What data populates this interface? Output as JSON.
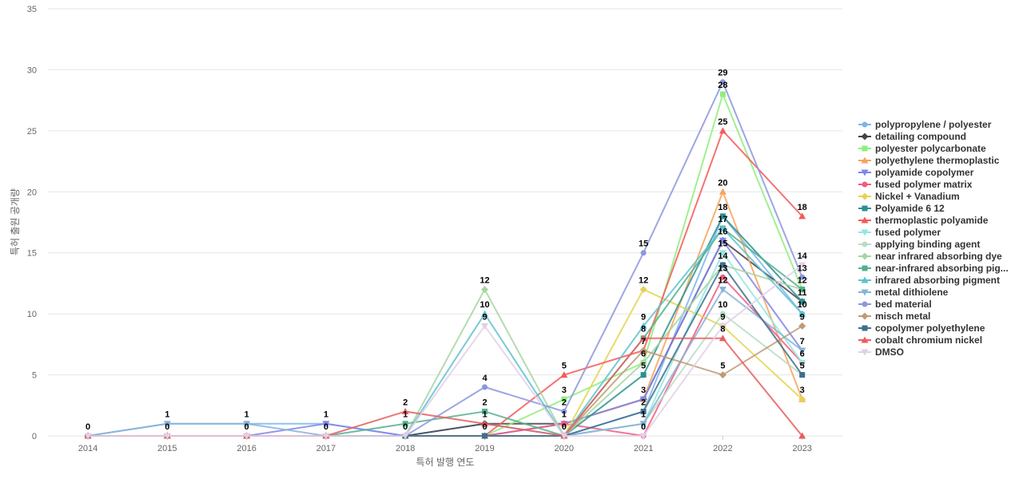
{
  "chart_data": {
    "type": "line",
    "title": "",
    "xlabel": "특허 발행 연도",
    "ylabel": "특허 출원 공개량",
    "ylim": [
      0,
      35
    ],
    "yticks": [
      0,
      5,
      10,
      15,
      20,
      25,
      30,
      35
    ],
    "grid": true,
    "legend_position": "right",
    "categories": [
      "2014",
      "2015",
      "2016",
      "2017",
      "2018",
      "2019",
      "2020",
      "2021",
      "2022",
      "2023"
    ],
    "series": [
      {
        "name": "polypropylene / polyester",
        "color": "#7cb5ec",
        "marker": "circle",
        "values": [
          0,
          1,
          1,
          1,
          0,
          1,
          0,
          2,
          18,
          10
        ]
      },
      {
        "name": "detailing compound",
        "color": "#434348",
        "marker": "diamond",
        "values": [
          0,
          0,
          0,
          0,
          0,
          1,
          1,
          3,
          16,
          11
        ]
      },
      {
        "name": "polyester polycarbonate",
        "color": "#90ed7d",
        "marker": "square",
        "values": [
          0,
          0,
          0,
          0,
          0,
          0,
          3,
          6,
          28,
          12
        ]
      },
      {
        "name": "polyethylene thermoplastic",
        "color": "#f7a35c",
        "marker": "triangle",
        "values": [
          0,
          0,
          0,
          0,
          0,
          0,
          1,
          3,
          20,
          3
        ]
      },
      {
        "name": "polyamide copolymer",
        "color": "#8085e9",
        "marker": "triangle-down",
        "values": [
          0,
          0,
          0,
          1,
          0,
          0,
          1,
          3,
          16,
          7
        ]
      },
      {
        "name": "fused polymer matrix",
        "color": "#f15c80",
        "marker": "circle",
        "values": [
          0,
          0,
          0,
          0,
          0,
          0,
          1,
          0,
          13,
          6
        ]
      },
      {
        "name": "Nickel + Vanadium",
        "color": "#e4d354",
        "marker": "diamond",
        "values": [
          0,
          0,
          0,
          0,
          0,
          0,
          0,
          12,
          9,
          3
        ]
      },
      {
        "name": "Polyamide 6 12",
        "color": "#2b908f",
        "marker": "square",
        "values": [
          0,
          0,
          0,
          0,
          0,
          0,
          0,
          5,
          18,
          11
        ]
      },
      {
        "name": "thermoplastic polyamide",
        "color": "#f45b5b",
        "marker": "triangle",
        "values": [
          0,
          0,
          0,
          0,
          0,
          0,
          5,
          7,
          25,
          18
        ]
      },
      {
        "name": "fused polymer",
        "color": "#91e8e1",
        "marker": "triangle-down",
        "values": [
          0,
          0,
          0,
          0,
          0,
          0,
          0,
          1,
          15,
          6
        ]
      },
      {
        "name": "applying binding agent",
        "color": "#b8dcc4",
        "marker": "circle",
        "values": [
          0,
          0,
          0,
          0,
          0,
          0,
          0,
          1,
          10,
          5
        ]
      },
      {
        "name": "near infrared absorbing dye",
        "color": "#a8d5a2",
        "marker": "diamond",
        "values": [
          0,
          0,
          0,
          0,
          0,
          12,
          0,
          6,
          14,
          12
        ]
      },
      {
        "name": "near-infrared absorbing pig...",
        "color": "#52b08e",
        "marker": "square",
        "values": [
          0,
          0,
          0,
          0,
          1,
          2,
          0,
          8,
          17,
          12
        ]
      },
      {
        "name": "infrared absorbing pigment",
        "color": "#5ec2cf",
        "marker": "triangle",
        "values": [
          0,
          0,
          0,
          0,
          0,
          10,
          0,
          9,
          17,
          10
        ]
      },
      {
        "name": "metal dithiolene",
        "color": "#86b3d9",
        "marker": "triangle-down",
        "values": [
          0,
          1,
          1,
          0,
          0,
          0,
          0,
          1,
          12,
          7
        ]
      },
      {
        "name": "bed material",
        "color": "#8c96dc",
        "marker": "circle",
        "values": [
          0,
          0,
          0,
          0,
          0,
          4,
          2,
          15,
          29,
          13
        ]
      },
      {
        "name": "misch metal",
        "color": "#c09a76",
        "marker": "diamond",
        "values": [
          0,
          0,
          0,
          0,
          0,
          0,
          0,
          7,
          5,
          9
        ]
      },
      {
        "name": "copolymer polyethylene",
        "color": "#3f6e8c",
        "marker": "square",
        "values": [
          0,
          0,
          0,
          0,
          0,
          0,
          0,
          2,
          14,
          5
        ]
      },
      {
        "name": "cobalt chromium nickel",
        "color": "#e85e5e",
        "marker": "triangle",
        "values": [
          0,
          0,
          0,
          0,
          2,
          1,
          0,
          8,
          8,
          0
        ]
      },
      {
        "name": "DMSO",
        "color": "#e3cfe6",
        "marker": "triangle-down",
        "values": [
          0,
          0,
          0,
          0,
          0,
          9,
          0,
          0,
          9,
          14
        ]
      }
    ],
    "point_labels": [
      {
        "x": "2014",
        "y": 0,
        "text": "0"
      },
      {
        "x": "2015",
        "y": 1,
        "text": "1"
      },
      {
        "x": "2015",
        "y": 0,
        "text": "0"
      },
      {
        "x": "2016",
        "y": 1,
        "text": "1"
      },
      {
        "x": "2016",
        "y": 0,
        "text": "0"
      },
      {
        "x": "2017",
        "y": 1,
        "text": "1"
      },
      {
        "x": "2017",
        "y": 0,
        "text": "0"
      },
      {
        "x": "2018",
        "y": 2,
        "text": "2"
      },
      {
        "x": "2018",
        "y": 1,
        "text": "1"
      },
      {
        "x": "2018",
        "y": 0,
        "text": "0"
      },
      {
        "x": "2019",
        "y": 12,
        "text": "12"
      },
      {
        "x": "2019",
        "y": 10,
        "text": "10"
      },
      {
        "x": "2019",
        "y": 9,
        "text": "9"
      },
      {
        "x": "2019",
        "y": 4,
        "text": "4"
      },
      {
        "x": "2019",
        "y": 2,
        "text": "2"
      },
      {
        "x": "2019",
        "y": 1,
        "text": "1"
      },
      {
        "x": "2019",
        "y": 0,
        "text": "0"
      },
      {
        "x": "2020",
        "y": 5,
        "text": "5"
      },
      {
        "x": "2020",
        "y": 3,
        "text": "3"
      },
      {
        "x": "2020",
        "y": 2,
        "text": "2"
      },
      {
        "x": "2020",
        "y": 1,
        "text": "1"
      },
      {
        "x": "2020",
        "y": 0,
        "text": "0"
      },
      {
        "x": "2021",
        "y": 15,
        "text": "15"
      },
      {
        "x": "2021",
        "y": 12,
        "text": "12"
      },
      {
        "x": "2021",
        "y": 9,
        "text": "9"
      },
      {
        "x": "2021",
        "y": 8,
        "text": "8"
      },
      {
        "x": "2021",
        "y": 7,
        "text": "7"
      },
      {
        "x": "2021",
        "y": 6,
        "text": "6"
      },
      {
        "x": "2021",
        "y": 5,
        "text": "5"
      },
      {
        "x": "2021",
        "y": 3,
        "text": "3"
      },
      {
        "x": "2021",
        "y": 2,
        "text": "2"
      },
      {
        "x": "2021",
        "y": 1,
        "text": "1"
      },
      {
        "x": "2021",
        "y": 0,
        "text": "0"
      },
      {
        "x": "2022",
        "y": 29,
        "text": "29"
      },
      {
        "x": "2022",
        "y": 28,
        "text": "28"
      },
      {
        "x": "2022",
        "y": 25,
        "text": "25"
      },
      {
        "x": "2022",
        "y": 20,
        "text": "20"
      },
      {
        "x": "2022",
        "y": 18,
        "text": "18"
      },
      {
        "x": "2022",
        "y": 17,
        "text": "17"
      },
      {
        "x": "2022",
        "y": 16,
        "text": "16"
      },
      {
        "x": "2022",
        "y": 15,
        "text": "15"
      },
      {
        "x": "2022",
        "y": 14,
        "text": "14"
      },
      {
        "x": "2022",
        "y": 13,
        "text": "13"
      },
      {
        "x": "2022",
        "y": 12,
        "text": "12"
      },
      {
        "x": "2022",
        "y": 10,
        "text": "10"
      },
      {
        "x": "2022",
        "y": 9,
        "text": "9"
      },
      {
        "x": "2022",
        "y": 8,
        "text": "8"
      },
      {
        "x": "2022",
        "y": 5,
        "text": "5"
      },
      {
        "x": "2023",
        "y": 18,
        "text": "18"
      },
      {
        "x": "2023",
        "y": 14,
        "text": "14"
      },
      {
        "x": "2023",
        "y": 13,
        "text": "13"
      },
      {
        "x": "2023",
        "y": 12,
        "text": "12"
      },
      {
        "x": "2023",
        "y": 11,
        "text": "11"
      },
      {
        "x": "2023",
        "y": 10,
        "text": "10"
      },
      {
        "x": "2023",
        "y": 9,
        "text": "9"
      },
      {
        "x": "2023",
        "y": 7,
        "text": "7"
      },
      {
        "x": "2023",
        "y": 6,
        "text": "6"
      },
      {
        "x": "2023",
        "y": 5,
        "text": "5"
      },
      {
        "x": "2023",
        "y": 3,
        "text": "3"
      }
    ]
  }
}
